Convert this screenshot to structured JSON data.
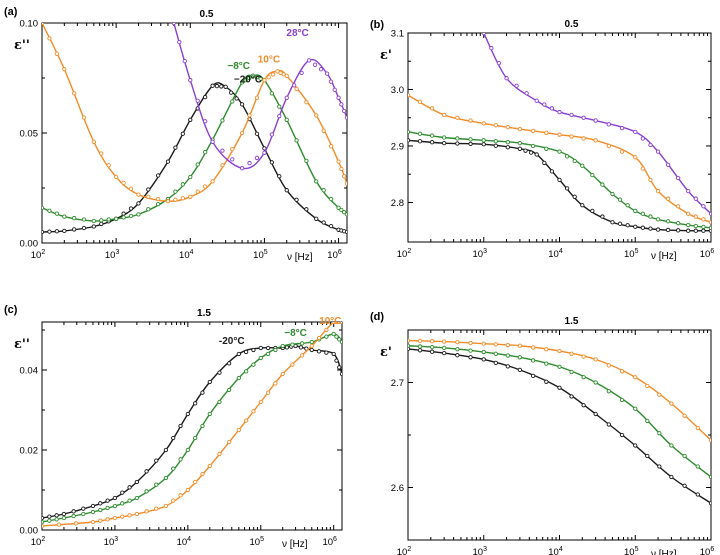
{
  "chart_data": [
    {
      "type": "line",
      "panel_label": "(a)",
      "title": "0.5",
      "ylabel": "ε''",
      "xlabel": "ν [Hz]",
      "xscale": "log",
      "xlim": [
        100,
        1300000
      ],
      "ylim": [
        0.0,
        0.1
      ],
      "xticks": [
        100,
        1000,
        10000,
        100000,
        1000000
      ],
      "xtick_labels": [
        {
          "base": "10",
          "exp": "2"
        },
        {
          "base": "10",
          "exp": "3"
        },
        {
          "base": "10",
          "exp": "4"
        },
        {
          "base": "10",
          "exp": "5"
        },
        {
          "base": "10",
          "exp": "6"
        }
      ],
      "yticks": [
        0.0,
        0.05,
        0.1
      ],
      "ytick_labels": [
        "0.00",
        "0.05",
        "0.10"
      ],
      "series": [
        {
          "name": "−20°C",
          "color": "#1a1a1a",
          "label_at": [
            60000,
            0.073
          ],
          "x": [
            100,
            200,
            500,
            1000,
            2000,
            5000,
            10000,
            20000,
            30000,
            50000,
            100000,
            200000,
            500000,
            1000000,
            1300000
          ],
          "values": [
            0.005,
            0.0055,
            0.0075,
            0.011,
            0.018,
            0.037,
            0.056,
            0.0715,
            0.071,
            0.063,
            0.043,
            0.024,
            0.011,
            0.006,
            0.005
          ]
        },
        {
          "name": "−8°C",
          "color": "#2e8b2e",
          "label_at": [
            45000,
            0.079
          ],
          "x": [
            100,
            200,
            500,
            1000,
            2000,
            5000,
            10000,
            20000,
            50000,
            70000,
            100000,
            200000,
            500000,
            1000000,
            1300000
          ],
          "values": [
            0.016,
            0.012,
            0.01,
            0.011,
            0.013,
            0.02,
            0.03,
            0.047,
            0.073,
            0.076,
            0.074,
            0.056,
            0.028,
            0.016,
            0.013
          ]
        },
        {
          "name": "10°C",
          "color": "#f28c28",
          "label_at": [
            115000,
            0.082
          ],
          "x": [
            100,
            200,
            500,
            1000,
            2000,
            5000,
            10000,
            20000,
            50000,
            100000,
            150000,
            200000,
            500000,
            1000000,
            1300000
          ],
          "values": [
            0.1,
            0.079,
            0.046,
            0.03,
            0.022,
            0.019,
            0.021,
            0.028,
            0.05,
            0.074,
            0.078,
            0.076,
            0.058,
            0.037,
            0.027
          ]
        },
        {
          "name": "28°C",
          "color": "#8a3fd1",
          "label_at": [
            280000,
            0.094
          ],
          "x": [
            6000,
            10000,
            20000,
            50000,
            100000,
            200000,
            400000,
            700000,
            1000000,
            1300000
          ],
          "values": [
            0.1,
            0.074,
            0.046,
            0.034,
            0.041,
            0.066,
            0.083,
            0.077,
            0.066,
            0.057
          ]
        }
      ]
    },
    {
      "type": "line",
      "panel_label": "(b)",
      "title": "0.5",
      "ylabel": "ε'",
      "xlabel": "ν [Hz]",
      "xscale": "log",
      "xlim": [
        100,
        1000000
      ],
      "ylim": [
        2.73,
        3.1
      ],
      "xticks": [
        100,
        1000,
        10000,
        100000,
        1000000
      ],
      "xtick_labels": [
        {
          "base": "10",
          "exp": "2"
        },
        {
          "base": "10",
          "exp": "3"
        },
        {
          "base": "10",
          "exp": "4"
        },
        {
          "base": "10",
          "exp": "5"
        },
        {
          "base": "10",
          "exp": "6"
        }
      ],
      "yticks": [
        2.8,
        2.9,
        3.0,
        3.1
      ],
      "ytick_labels": [
        "2.8",
        "2.9",
        "3.0",
        "3.1"
      ],
      "series": [
        {
          "name": "−20°C",
          "color": "#1a1a1a",
          "x": [
            100,
            300,
            1000,
            3000,
            5000,
            10000,
            20000,
            50000,
            100000,
            200000,
            500000,
            1000000
          ],
          "values": [
            2.91,
            2.905,
            2.903,
            2.895,
            2.885,
            2.84,
            2.795,
            2.765,
            2.757,
            2.752,
            2.75,
            2.75
          ]
        },
        {
          "name": "−8°C",
          "color": "#2e8b2e",
          "x": [
            100,
            300,
            1000,
            3000,
            10000,
            20000,
            50000,
            100000,
            200000,
            500000,
            1000000
          ],
          "values": [
            2.925,
            2.915,
            2.91,
            2.905,
            2.89,
            2.865,
            2.815,
            2.785,
            2.77,
            2.76,
            2.755
          ]
        },
        {
          "name": "10°C",
          "color": "#f28c28",
          "x": [
            100,
            300,
            1000,
            3000,
            10000,
            30000,
            100000,
            200000,
            500000,
            1000000
          ],
          "values": [
            2.99,
            2.955,
            2.94,
            2.93,
            2.92,
            2.91,
            2.88,
            2.82,
            2.78,
            2.765
          ]
        },
        {
          "name": "28°C",
          "color": "#8a3fd1",
          "x": [
            1000,
            2000,
            5000,
            10000,
            30000,
            100000,
            200000,
            500000,
            1000000
          ],
          "values": [
            3.1,
            3.02,
            2.98,
            2.96,
            2.945,
            2.925,
            2.89,
            2.82,
            2.78
          ]
        }
      ]
    },
    {
      "type": "line",
      "panel_label": "(c)",
      "title": "1.5",
      "ylabel": "ε''",
      "xlabel": "ν [Hz]",
      "xscale": "log",
      "xlim": [
        100,
        1300000
      ],
      "ylim": [
        0.0,
        0.052
      ],
      "xticks": [
        100,
        1000,
        10000,
        100000,
        1000000
      ],
      "xtick_labels": [
        {
          "base": "10",
          "exp": "2"
        },
        {
          "base": "10",
          "exp": "3"
        },
        {
          "base": "10",
          "exp": "4"
        },
        {
          "base": "10",
          "exp": "5"
        },
        {
          "base": "10",
          "exp": "6"
        }
      ],
      "yticks": [
        0.0,
        0.02,
        0.04
      ],
      "ytick_labels": [
        "0.00",
        "0.02",
        "0.04"
      ],
      "series": [
        {
          "name": "-20°C",
          "color": "#1a1a1a",
          "label_at": [
            40000,
            0.0465
          ],
          "x": [
            100,
            200,
            500,
            1000,
            2000,
            5000,
            10000,
            20000,
            50000,
            100000,
            200000,
            300000,
            500000,
            1000000,
            1300000
          ],
          "values": [
            0.003,
            0.004,
            0.006,
            0.008,
            0.012,
            0.02,
            0.029,
            0.037,
            0.044,
            0.0455,
            0.0455,
            0.046,
            0.045,
            0.044,
            0.039
          ]
        },
        {
          "name": "−8°C",
          "color": "#2e8b2e",
          "label_at": [
            300000,
            0.0485
          ],
          "x": [
            100,
            200,
            500,
            1000,
            2000,
            5000,
            10000,
            20000,
            50000,
            100000,
            200000,
            500000,
            1000000,
            1300000
          ],
          "values": [
            0.002,
            0.003,
            0.0045,
            0.006,
            0.008,
            0.013,
            0.02,
            0.029,
            0.038,
            0.043,
            0.046,
            0.047,
            0.049,
            0.047
          ]
        },
        {
          "name": "10°C",
          "color": "#f28c28",
          "label_at": [
            900000,
            0.0515
          ],
          "x": [
            100,
            500,
            1000,
            2000,
            5000,
            10000,
            20000,
            50000,
            100000,
            200000,
            500000,
            1000000,
            1300000
          ],
          "values": [
            0.001,
            0.002,
            0.003,
            0.004,
            0.006,
            0.01,
            0.016,
            0.025,
            0.032,
            0.039,
            0.046,
            0.052,
            0.052
          ]
        }
      ]
    },
    {
      "type": "line",
      "panel_label": "(d)",
      "title": "1.5",
      "ylabel": "ε'",
      "xlabel": "ν [Hz]",
      "xscale": "log",
      "xlim": [
        100,
        1000000
      ],
      "ylim": [
        2.55,
        2.75
      ],
      "xticks": [
        100,
        1000,
        10000,
        100000,
        1000000
      ],
      "xtick_labels": [
        {
          "base": "10",
          "exp": "2"
        },
        {
          "base": "10",
          "exp": "3"
        },
        {
          "base": "10",
          "exp": "4"
        },
        {
          "base": "10",
          "exp": "5"
        },
        {
          "base": "10",
          "exp": "6"
        }
      ],
      "yticks": [
        2.6,
        2.7
      ],
      "ytick_labels": [
        "2.6",
        "2.7"
      ],
      "series": [
        {
          "name": "−20°C",
          "color": "#1a1a1a",
          "x": [
            100,
            300,
            1000,
            3000,
            10000,
            30000,
            100000,
            300000,
            1000000
          ],
          "values": [
            2.732,
            2.728,
            2.722,
            2.712,
            2.695,
            2.67,
            2.64,
            2.61,
            2.585
          ]
        },
        {
          "name": "−8°C",
          "color": "#2e8b2e",
          "x": [
            100,
            300,
            1000,
            3000,
            10000,
            30000,
            100000,
            300000,
            1000000
          ],
          "values": [
            2.735,
            2.733,
            2.729,
            2.724,
            2.715,
            2.7,
            2.675,
            2.64,
            2.61
          ]
        },
        {
          "name": "10°C",
          "color": "#f28c28",
          "x": [
            100,
            300,
            1000,
            3000,
            10000,
            30000,
            100000,
            300000,
            1000000
          ],
          "values": [
            2.74,
            2.739,
            2.737,
            2.735,
            2.73,
            2.722,
            2.705,
            2.68,
            2.645
          ]
        }
      ]
    }
  ]
}
